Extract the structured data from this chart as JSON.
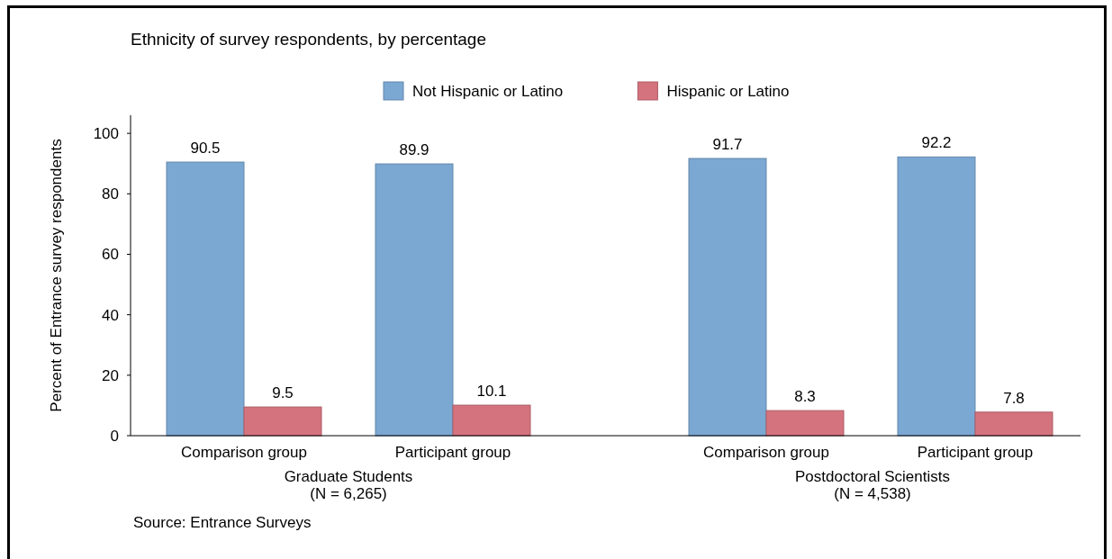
{
  "chart_data": {
    "type": "bar",
    "title": "Ethnicity of survey respondents, by percentage",
    "ylabel": "Percent of Entrance survey respondents",
    "categories": [
      "Comparison group",
      "Participant group",
      "Comparison group",
      "Participant group"
    ],
    "series": [
      {
        "name": "Not Hispanic or Latino",
        "color": "#7ba7d3",
        "values": [
          90.5,
          89.9,
          91.7,
          92.2
        ]
      },
      {
        "name": "Hispanic or Latino",
        "color": "#d4737e",
        "values": [
          9.5,
          10.1,
          8.3,
          7.8
        ]
      }
    ],
    "ylim": [
      0,
      106
    ],
    "yticks": [
      0,
      20,
      40,
      60,
      80,
      100
    ],
    "data_labels": true,
    "legend": "top",
    "grid": false,
    "annotations": [
      "Graduate Students\n(N = 6,265)",
      "Postdoctoral Scientists\n(N = 4,538)",
      "Source: Entrance Surveys"
    ]
  }
}
